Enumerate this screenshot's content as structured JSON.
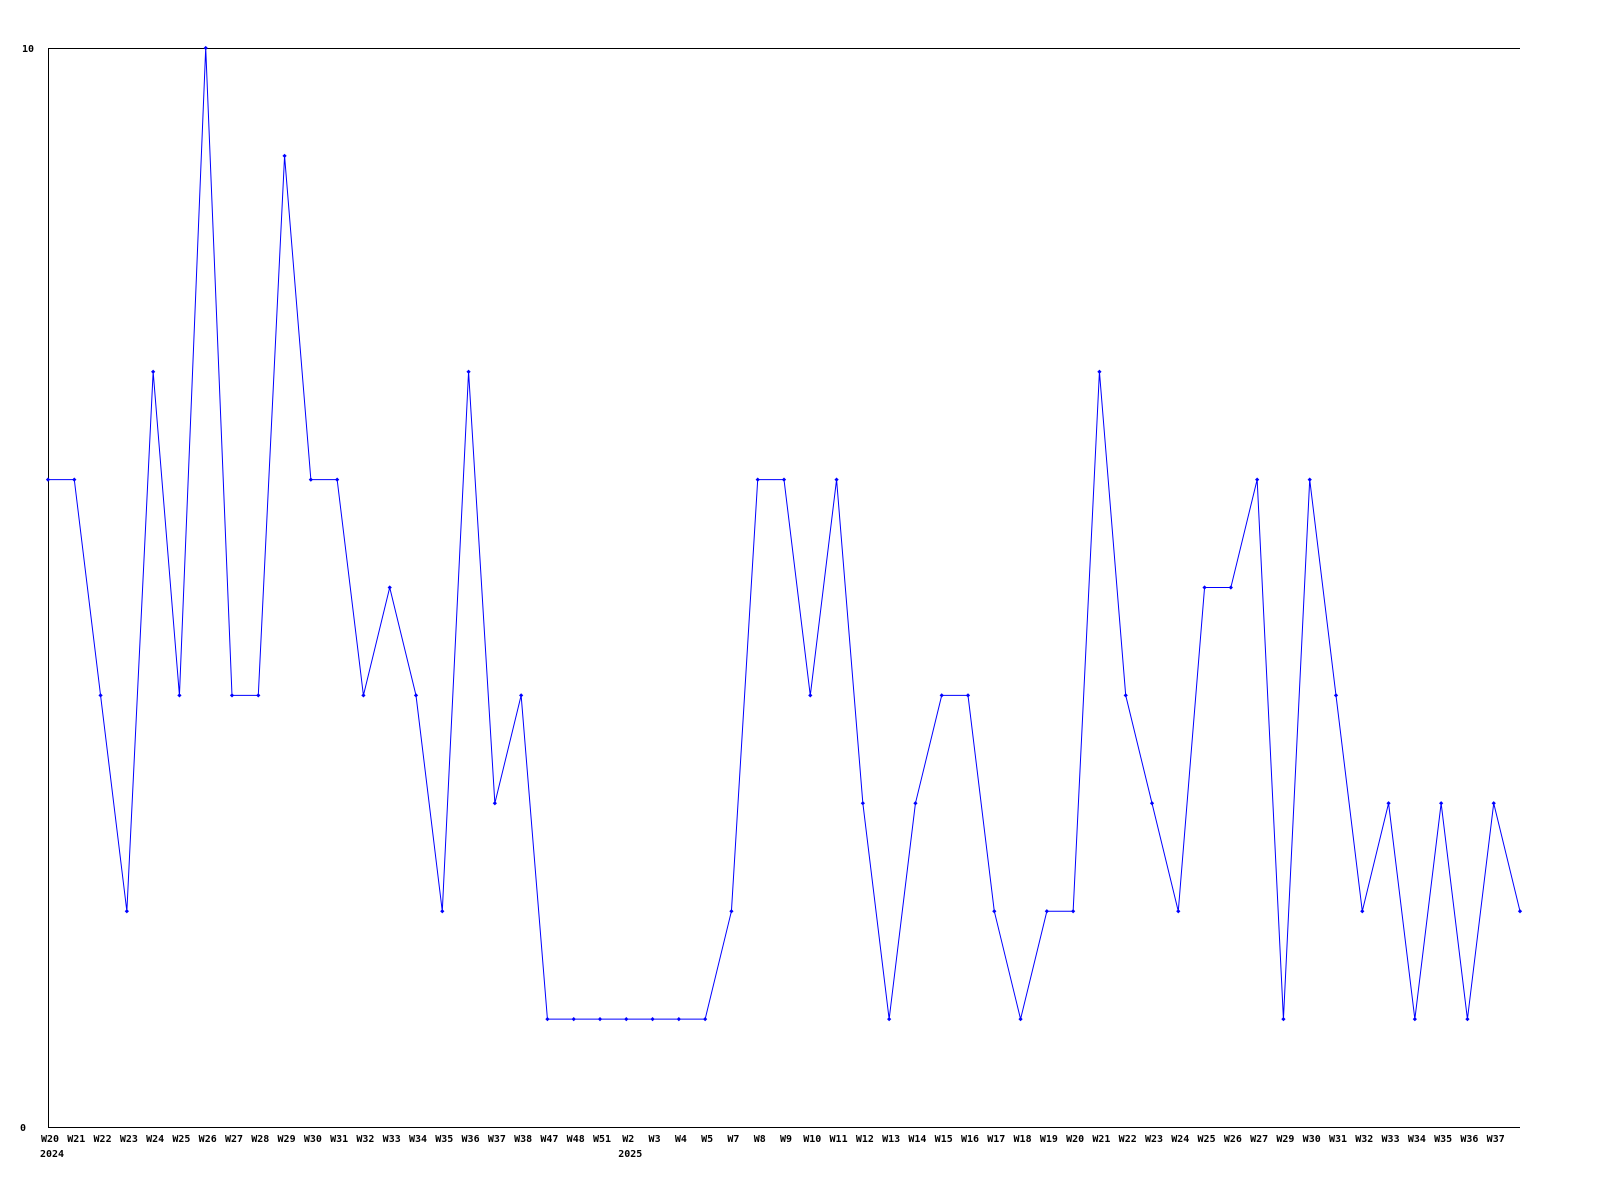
{
  "chart_data": {
    "type": "line",
    "title": "",
    "xlabel": "",
    "ylabel": "",
    "ylim": [
      0,
      10
    ],
    "y_ticks": [
      "0",
      "10"
    ],
    "grid": false,
    "line_color": "#0000ff",
    "categories": [
      "W20",
      "W21",
      "W22",
      "W23",
      "W24",
      "W25",
      "W26",
      "W27",
      "W28",
      "W29",
      "W30",
      "W31",
      "W32",
      "W33",
      "W34",
      "W35",
      "W36",
      "W37",
      "W38",
      "W47",
      "W48",
      "W51",
      "W2",
      "W3",
      "W4",
      "W5",
      "W7",
      "W8",
      "W9",
      "W10",
      "W11",
      "W12",
      "W13",
      "W14",
      "W15",
      "W16",
      "W17",
      "W18",
      "W19",
      "W20",
      "W21",
      "W22",
      "W23",
      "W24",
      "W25",
      "W26",
      "W27",
      "W29",
      "W30",
      "W31",
      "W32",
      "W33",
      "W34",
      "W35",
      "W36",
      "W37",
      ""
    ],
    "year_labels": [
      {
        "index": 0,
        "text": "2024"
      },
      {
        "index": 22,
        "text": "2025"
      }
    ],
    "values": [
      6,
      6,
      4,
      2,
      7,
      4,
      10,
      4,
      4,
      9,
      6,
      6,
      4,
      5,
      4,
      2,
      7,
      3,
      4,
      1,
      1,
      1,
      1,
      1,
      1,
      1,
      2,
      6,
      6,
      4,
      6,
      3,
      1,
      3,
      4,
      4,
      2,
      1,
      2,
      2,
      7,
      4,
      3,
      2,
      5,
      5,
      6,
      1,
      6,
      4,
      2,
      3,
      1,
      3,
      1,
      3,
      2
    ]
  }
}
